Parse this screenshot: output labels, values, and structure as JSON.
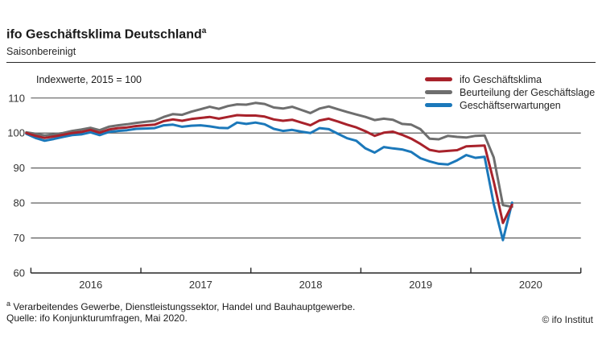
{
  "header": {
    "title": "ifo Geschäftsklima Deutschland",
    "title_superscript": "a",
    "subtitle": "Saisonbereinigt"
  },
  "chart_data": {
    "type": "line",
    "title": "ifo Geschäftsklima Deutschland, saisonbereinigt",
    "annotation": "Indexwerte, 2015 = 100",
    "grid": true,
    "legend_position": "top-right",
    "ylim": [
      60,
      112
    ],
    "y_ticks": [
      60,
      70,
      80,
      90,
      100,
      110
    ],
    "x_tick_labels": [
      "2016",
      "2017",
      "2018",
      "2019",
      "2020"
    ],
    "x_months": [
      "2015-12",
      "2016-01",
      "2016-02",
      "2016-03",
      "2016-04",
      "2016-05",
      "2016-06",
      "2016-07",
      "2016-08",
      "2016-09",
      "2016-10",
      "2016-11",
      "2016-12",
      "2017-01",
      "2017-02",
      "2017-03",
      "2017-04",
      "2017-05",
      "2017-06",
      "2017-07",
      "2017-08",
      "2017-09",
      "2017-10",
      "2017-11",
      "2017-12",
      "2018-01",
      "2018-02",
      "2018-03",
      "2018-04",
      "2018-05",
      "2018-06",
      "2018-07",
      "2018-08",
      "2018-09",
      "2018-10",
      "2018-11",
      "2018-12",
      "2019-01",
      "2019-02",
      "2019-03",
      "2019-04",
      "2019-05",
      "2019-06",
      "2019-07",
      "2019-08",
      "2019-09",
      "2019-10",
      "2019-11",
      "2019-12",
      "2020-01",
      "2020-02",
      "2020-03",
      "2020-04",
      "2020-05"
    ],
    "series": [
      {
        "name": "ifo Geschäftsklima",
        "color": "#a8222b",
        "values": [
          100.0,
          99.2,
          98.6,
          99.0,
          99.5,
          100.0,
          100.3,
          100.9,
          100.1,
          101.0,
          101.4,
          101.6,
          102.0,
          102.2,
          102.4,
          103.4,
          103.9,
          103.5,
          104.0,
          104.3,
          104.6,
          104.1,
          104.6,
          105.1,
          105.0,
          105.0,
          104.7,
          103.9,
          103.5,
          103.8,
          103.0,
          102.2,
          103.6,
          104.1,
          103.3,
          102.4,
          101.6,
          100.5,
          99.2,
          100.1,
          100.4,
          99.5,
          98.4,
          96.9,
          95.2,
          94.7,
          94.9,
          95.1,
          96.2,
          96.3,
          96.4,
          86.1,
          74.3,
          79.5
        ]
      },
      {
        "name": "Beurteilung der Geschäftslage",
        "color": "#6e6e6e",
        "values": [
          100.2,
          99.8,
          99.3,
          99.6,
          100.0,
          100.6,
          101.0,
          101.5,
          100.8,
          101.8,
          102.2,
          102.5,
          102.9,
          103.2,
          103.5,
          104.6,
          105.4,
          105.2,
          106.1,
          106.8,
          107.5,
          106.9,
          107.7,
          108.2,
          108.1,
          108.6,
          108.3,
          107.3,
          107.0,
          107.5,
          106.6,
          105.7,
          107.0,
          107.6,
          106.8,
          106.0,
          105.3,
          104.6,
          103.7,
          104.1,
          103.8,
          102.6,
          102.4,
          101.1,
          98.4,
          98.2,
          99.2,
          98.9,
          98.7,
          99.2,
          99.3,
          93.0,
          79.4,
          78.9
        ]
      },
      {
        "name": "Geschäftserwartungen",
        "color": "#1b78ba",
        "values": [
          99.8,
          98.6,
          97.8,
          98.3,
          98.9,
          99.4,
          99.6,
          100.2,
          99.4,
          100.3,
          100.6,
          100.8,
          101.2,
          101.3,
          101.4,
          102.2,
          102.4,
          101.8,
          102.1,
          102.2,
          101.9,
          101.5,
          101.4,
          103.0,
          102.6,
          103.0,
          102.5,
          101.2,
          100.6,
          100.9,
          100.4,
          100.0,
          101.4,
          101.1,
          99.8,
          98.5,
          97.8,
          95.6,
          94.4,
          96.0,
          95.6,
          95.3,
          94.6,
          92.8,
          91.9,
          91.2,
          91.0,
          92.2,
          93.7,
          92.9,
          93.2,
          79.7,
          69.4,
          80.1
        ]
      }
    ],
    "colors": {
      "grid": "#4d4d4d",
      "axis": "#262626",
      "text": "#333333"
    }
  },
  "footer": {
    "footnote_marker": "a",
    "footnote_text": " Verarbeitendes Gewerbe, Dienstleistungssektor, Handel und Bauhauptgewerbe.",
    "source": "Quelle: ifo Konjunkturumfragen, Mai 2020.",
    "copyright": "© ifo Institut"
  }
}
